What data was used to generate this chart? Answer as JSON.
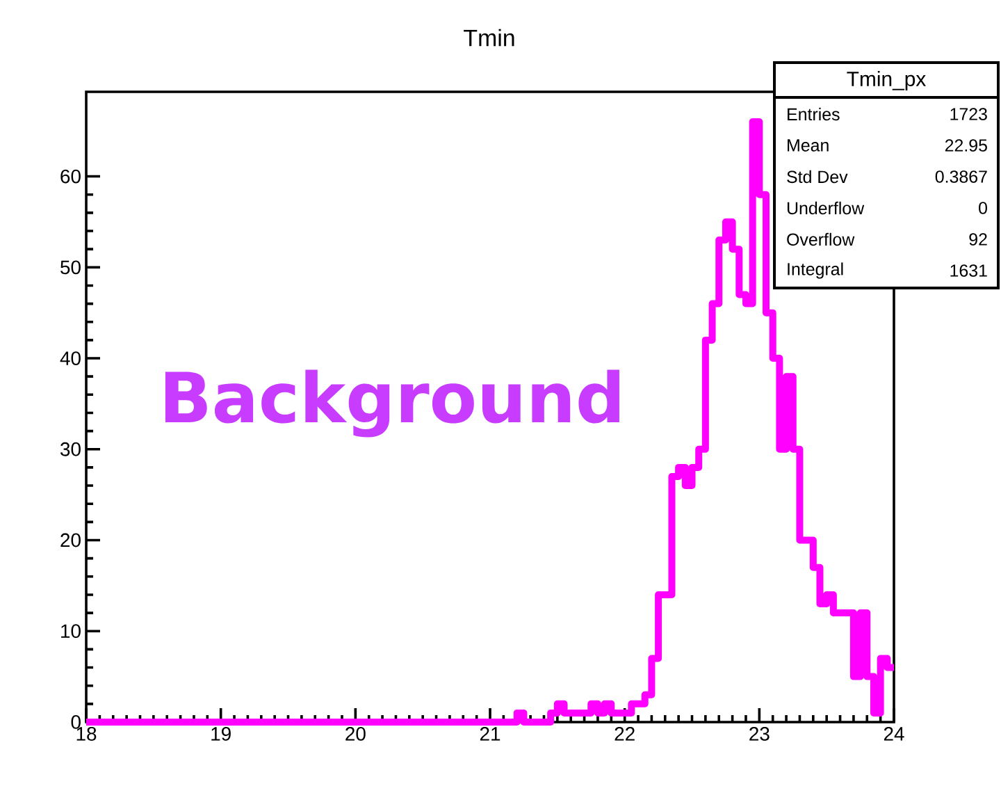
{
  "chart_data": {
    "type": "histogram",
    "title": "Tmin",
    "color": "#ff00ff",
    "bins": [
      18.0,
      18.05,
      18.1,
      18.15,
      18.2,
      18.25,
      18.3,
      18.35,
      18.4,
      18.45,
      18.5,
      18.55,
      18.6,
      18.65,
      18.7,
      18.75,
      18.8,
      18.85,
      18.9,
      18.95,
      19.0,
      19.05,
      19.1,
      19.15,
      19.2,
      19.25,
      19.3,
      19.35,
      19.4,
      19.45,
      19.5,
      19.55,
      19.6,
      19.65,
      19.7,
      19.75,
      19.8,
      19.85,
      19.9,
      19.95,
      20.0,
      20.05,
      20.1,
      20.15,
      20.2,
      20.25,
      20.3,
      20.35,
      20.4,
      20.45,
      20.5,
      20.55,
      20.6,
      20.65,
      20.7,
      20.75,
      20.8,
      20.85,
      20.9,
      20.95,
      21.0,
      21.05,
      21.1,
      21.15,
      21.2,
      21.25,
      21.3,
      21.35,
      21.4,
      21.45,
      21.5,
      21.55,
      21.6,
      21.65,
      21.7,
      21.75,
      21.8,
      21.85,
      21.9,
      21.95,
      22.0,
      22.05,
      22.1,
      22.15,
      22.2,
      22.25,
      22.3,
      22.35,
      22.4,
      22.45,
      22.5,
      22.55,
      22.6,
      22.65,
      22.7,
      22.75,
      22.8,
      22.85,
      22.9,
      22.95,
      23.0,
      23.05,
      23.1,
      23.15,
      23.2,
      23.25,
      23.3,
      23.35,
      23.4,
      23.45,
      23.5,
      23.55,
      23.6,
      23.65,
      23.7,
      23.75,
      23.8,
      23.85,
      23.9,
      23.95,
      24.0
    ],
    "values": [
      0,
      0,
      0,
      0,
      0,
      0,
      0,
      0,
      0,
      0,
      0,
      0,
      0,
      0,
      0,
      0,
      0,
      0,
      0,
      0,
      0,
      0,
      0,
      0,
      0,
      0,
      0,
      0,
      0,
      0,
      0,
      0,
      0,
      0,
      0,
      0,
      0,
      0,
      0,
      0,
      0,
      0,
      0,
      0,
      0,
      0,
      0,
      0,
      0,
      0,
      0,
      0,
      0,
      0,
      0,
      0,
      0,
      0,
      0,
      0,
      0,
      0,
      0,
      0,
      1,
      0,
      0,
      0,
      0,
      1,
      2,
      1,
      1,
      1,
      1,
      2,
      1,
      2,
      1,
      1,
      1,
      2,
      2,
      3,
      7,
      14,
      14,
      27,
      28,
      26,
      28,
      30,
      42,
      46,
      53,
      55,
      52,
      47,
      46,
      66,
      58,
      45,
      40,
      30,
      38,
      30,
      20,
      20,
      17,
      13,
      14,
      12,
      12,
      12,
      5,
      12,
      5,
      1,
      7,
      6
    ],
    "xlim": [
      18,
      24
    ],
    "ylim": [
      0,
      69.3
    ],
    "xticks": [
      18,
      19,
      20,
      21,
      22,
      23,
      24
    ],
    "yticks": [
      0,
      10,
      20,
      30,
      40,
      50,
      60
    ],
    "grid": false,
    "annotations": [
      "Background",
      "Tmin_px",
      "Entries",
      "1723",
      "Mean",
      "22.95",
      "Std Dev",
      "0.3867",
      "Underflow",
      "0",
      "Overflow",
      "92",
      "Integral",
      "1631"
    ]
  }
}
